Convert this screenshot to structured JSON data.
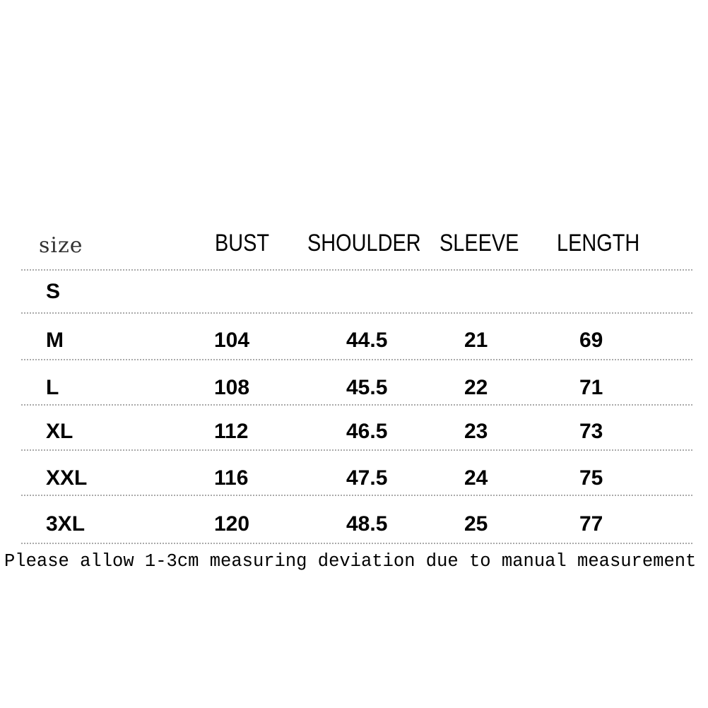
{
  "table": {
    "headers": [
      "size",
      "BUST",
      "SHOULDER",
      "SLEEVE",
      "LENGTH"
    ],
    "rows": [
      [
        "S",
        "",
        "",
        "",
        ""
      ],
      [
        "M",
        "104",
        "44.5",
        "21",
        "69"
      ],
      [
        "L",
        "108",
        "45.5",
        "22",
        "71"
      ],
      [
        "XL",
        "112",
        "46.5",
        "23",
        "73"
      ],
      [
        "XXL",
        "116",
        "47.5",
        "24",
        "75"
      ],
      [
        "3XL",
        "120",
        "48.5",
        "25",
        "77"
      ]
    ]
  },
  "footer": "Please allow 1-3cm measuring deviation due to manual measurement"
}
